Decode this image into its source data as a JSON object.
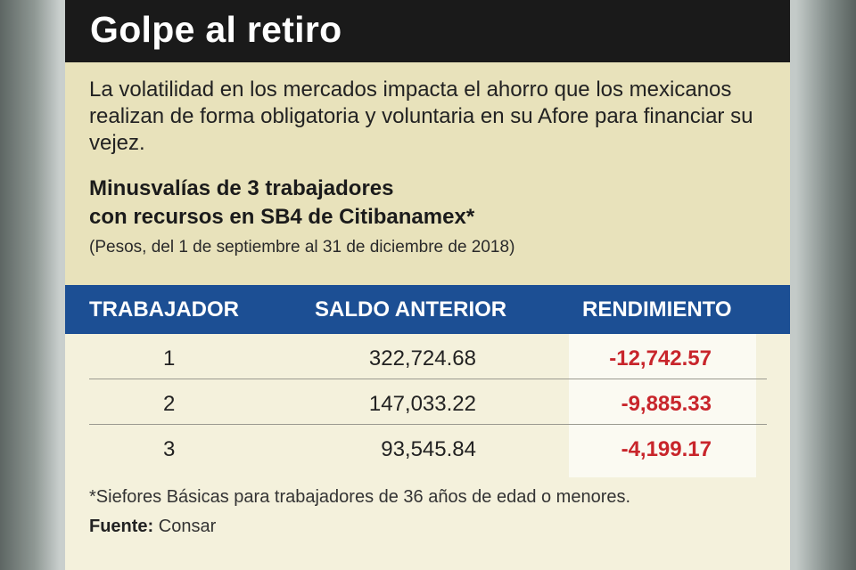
{
  "header": {
    "title": "Golpe al retiro"
  },
  "intro": "La volatilidad en los mercados impacta el ahorro que los mexicanos realizan de forma obligatoria y voluntaria en su Afore para financiar su vejez.",
  "subtitle_line1": "Minusvalías de 3 trabajadores",
  "subtitle_line2": "con recursos en SB4 de Citibanamex*",
  "units": "(Pesos, del 1 de septiembre al 31 de diciembre de 2018)",
  "table": {
    "headers": [
      "TRABAJADOR",
      "SALDO ANTERIOR",
      "RENDIMIENTO"
    ],
    "rows": [
      {
        "trabajador": "1",
        "saldo": "322,724.68",
        "rendimiento": "-12,742.57"
      },
      {
        "trabajador": "2",
        "saldo": "147,033.22",
        "rendimiento": "-9,885.33"
      },
      {
        "trabajador": "3",
        "saldo": "93,545.84",
        "rendimiento": "-4,199.17"
      }
    ]
  },
  "footnote": "*Siefores Básicas para trabajadores de 36 años de edad o menores.",
  "source": {
    "label": "Fuente:",
    "value": "Consar"
  },
  "colors": {
    "header_bar": "#1a1a1a",
    "intro_box": "#e8e2bb",
    "table_header": "#1c4f94",
    "negative_value": "#c8252b"
  }
}
